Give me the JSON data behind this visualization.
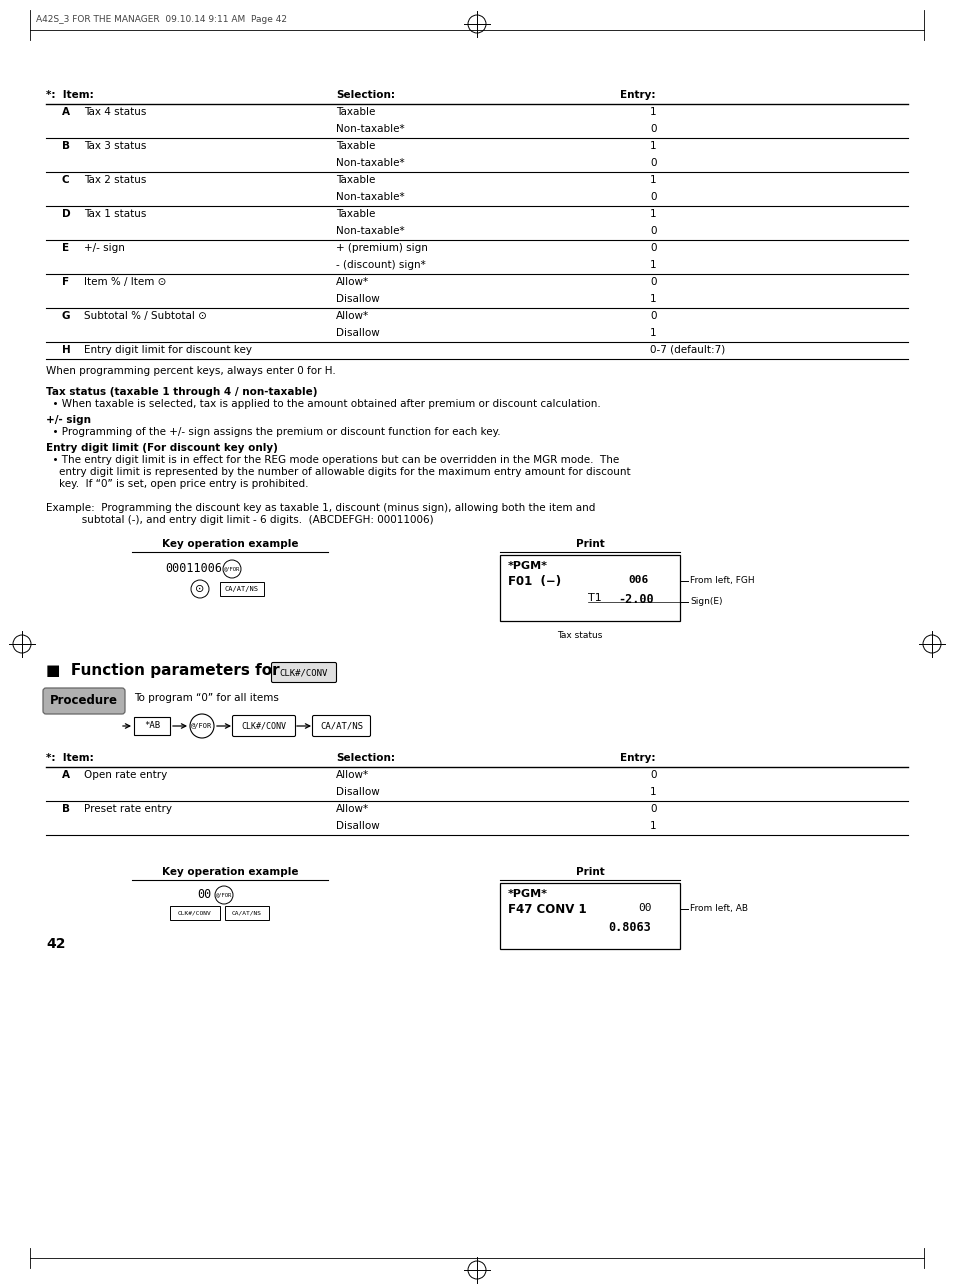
{
  "bg_color": "#ffffff",
  "page_number": "42",
  "header_text": "A42S_3 FOR THE MANAGER  09.10.14 9:11 AM  Page 42",
  "table1_rows": [
    [
      "A",
      "Tax 4 status",
      "Taxable",
      "1"
    ],
    [
      "",
      "",
      "Non-taxable*",
      "0"
    ],
    [
      "B",
      "Tax 3 status",
      "Taxable",
      "1"
    ],
    [
      "",
      "",
      "Non-taxable*",
      "0"
    ],
    [
      "C",
      "Tax 2 status",
      "Taxable",
      "1"
    ],
    [
      "",
      "",
      "Non-taxable*",
      "0"
    ],
    [
      "D",
      "Tax 1 status",
      "Taxable",
      "1"
    ],
    [
      "",
      "",
      "Non-taxable*",
      "0"
    ],
    [
      "E",
      "+/- sign",
      "+ (premium) sign",
      "0"
    ],
    [
      "",
      "",
      "- (discount) sign*",
      "1"
    ],
    [
      "F",
      "Item % / Item ⊙",
      "Allow*",
      "0"
    ],
    [
      "",
      "",
      "Disallow",
      "1"
    ],
    [
      "G",
      "Subtotal % / Subtotal ⊙",
      "Allow*",
      "0"
    ],
    [
      "",
      "",
      "Disallow",
      "1"
    ],
    [
      "H",
      "Entry digit limit for discount key",
      "",
      "0-7 (default:7)"
    ]
  ],
  "note1": "When programming percent keys, always enter 0 for H.",
  "section1_title": "Tax status (taxable 1 through 4 / non-taxable)",
  "section1_bullet": "  • When taxable is selected, tax is applied to the amount obtained after premium or discount calculation.",
  "section2_title": "+/- sign",
  "section2_bullet": "  • Programming of the +/- sign assigns the premium or discount function for each key.",
  "section3_title": "Entry digit limit (For discount key only)",
  "section3_b1": "  • The entry digit limit is in effect for the REG mode operations but can be overridden in the MGR mode.  The",
  "section3_b2": "    entry digit limit is represented by the number of allowable digits for the maximum entry amount for discount",
  "section3_b3": "    key.  If “0” is set, open price entry is prohibited.",
  "example_line1": "Example:  Programming the discount key as taxable 1, discount (minus sign), allowing both the item and",
  "example_line2": "           subtotal (-), and entry digit limit - 6 digits.  (ABCDEFGH: 00011006)",
  "key_op_title": "Key operation example",
  "print_title": "Print",
  "key_op_value1": "00011006",
  "section_title2": "Function parameters for",
  "clk_conv_label": "CLK#/CONV",
  "procedure_label": "Procedure",
  "procedure_note": "To program “0” for all items",
  "procedure_steps": [
    "*AB",
    "@/FOR",
    "CLK#/CONV",
    "CA/AT/NS"
  ],
  "table2_rows": [
    [
      "A",
      "Open rate entry",
      "Allow*",
      "0"
    ],
    [
      "",
      "",
      "Disallow",
      "1"
    ],
    [
      "B",
      "Preset rate entry",
      "Allow*",
      "0"
    ],
    [
      "",
      "",
      "Disallow",
      "1"
    ]
  ]
}
